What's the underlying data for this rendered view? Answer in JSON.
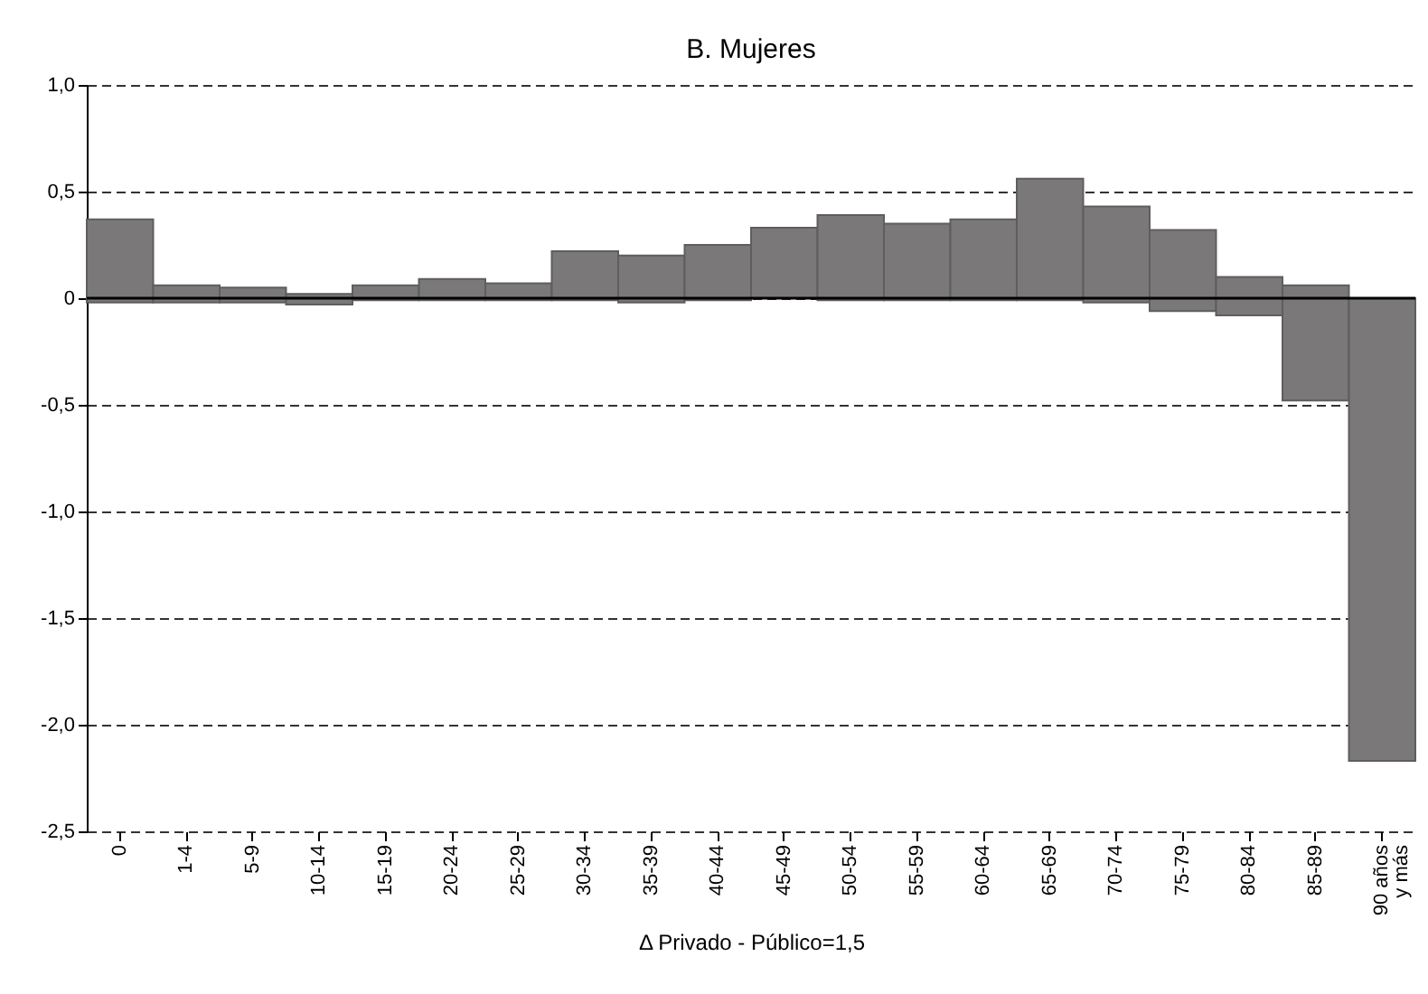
{
  "chart_data": {
    "type": "bar",
    "title": "B. Mujeres",
    "xlabel": "Δ Privado - Público=1,5",
    "categories": [
      "0",
      "1-4",
      "5-9",
      "10-14",
      "15-19",
      "20-24",
      "25-29",
      "30-34",
      "35-39",
      "40-44",
      "45-49",
      "50-54",
      "55-59",
      "60-64",
      "65-69",
      "70-74",
      "75-79",
      "80-84",
      "85-89",
      "90 años y más"
    ],
    "base": [
      -0.02,
      -0.02,
      -0.02,
      -0.03,
      -0.01,
      -0.01,
      -0.01,
      -0.01,
      -0.02,
      -0.01,
      0,
      -0.01,
      -0.01,
      -0.01,
      -0.01,
      -0.02,
      -0.06,
      -0.08,
      -0.48,
      -2.17
    ],
    "values": [
      0.39,
      0.08,
      0.07,
      0.05,
      0.07,
      0.1,
      0.08,
      0.23,
      0.22,
      0.26,
      0.33,
      0.4,
      0.36,
      0.38,
      0.57,
      0.45,
      0.38,
      0.18,
      0.54,
      2.17
    ],
    "color": "#7a7878",
    "ylim": [
      -2.5,
      1.0
    ],
    "yticks": [
      {
        "value": -2.5,
        "label": "-2,5"
      },
      {
        "value": -2.0,
        "label": "-2,0"
      },
      {
        "value": -1.5,
        "label": "-1,5"
      },
      {
        "value": -1.0,
        "label": "-1,0"
      },
      {
        "value": -0.5,
        "label": "-0,5"
      },
      {
        "value": 0,
        "label": "0"
      },
      {
        "value": 0.5,
        "label": "0,5"
      },
      {
        "value": 1.0,
        "label": "1,0"
      }
    ],
    "grid": "y",
    "ref_lines": [
      {
        "axis": "y",
        "value": 0,
        "color": "#000000"
      }
    ]
  }
}
